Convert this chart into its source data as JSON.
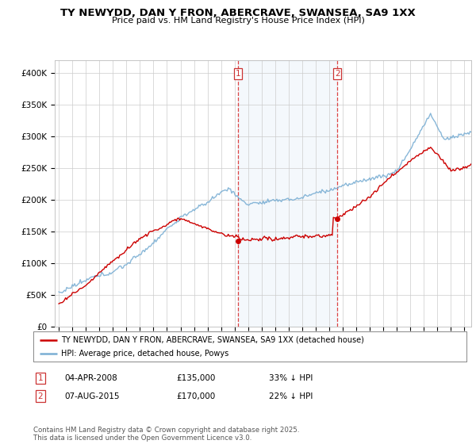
{
  "title": "TY NEWYDD, DAN Y FRON, ABERCRAVE, SWANSEA, SA9 1XX",
  "subtitle": "Price paid vs. HM Land Registry's House Price Index (HPI)",
  "background_color": "#ffffff",
  "plot_bg_color": "#ffffff",
  "grid_color": "#cccccc",
  "hpi_color": "#7bafd4",
  "price_color": "#cc0000",
  "highlight_bg": "#ddeeff",
  "sale1_year": 2008.25,
  "sale2_year": 2015.6,
  "sale1_price": 135000,
  "sale2_price": 170000,
  "annotation1": {
    "label": "1",
    "date": "04-APR-2008",
    "price": "£135,000",
    "pct": "33% ↓ HPI"
  },
  "annotation2": {
    "label": "2",
    "date": "07-AUG-2015",
    "price": "£170,000",
    "pct": "22% ↓ HPI"
  },
  "legend_line1": "TY NEWYDD, DAN Y FRON, ABERCRAVE, SWANSEA, SA9 1XX (detached house)",
  "legend_line2": "HPI: Average price, detached house, Powys",
  "footer": "Contains HM Land Registry data © Crown copyright and database right 2025.\nThis data is licensed under the Open Government Licence v3.0.",
  "ylim": [
    0,
    420000
  ],
  "yticks": [
    0,
    50000,
    100000,
    150000,
    200000,
    250000,
    300000,
    350000,
    400000
  ],
  "ytick_labels": [
    "£0",
    "£50K",
    "£100K",
    "£150K",
    "£200K",
    "£250K",
    "£300K",
    "£350K",
    "£400K"
  ],
  "xlim": [
    1994.7,
    2025.5
  ],
  "xtick_start": 1995,
  "xtick_end": 2025
}
